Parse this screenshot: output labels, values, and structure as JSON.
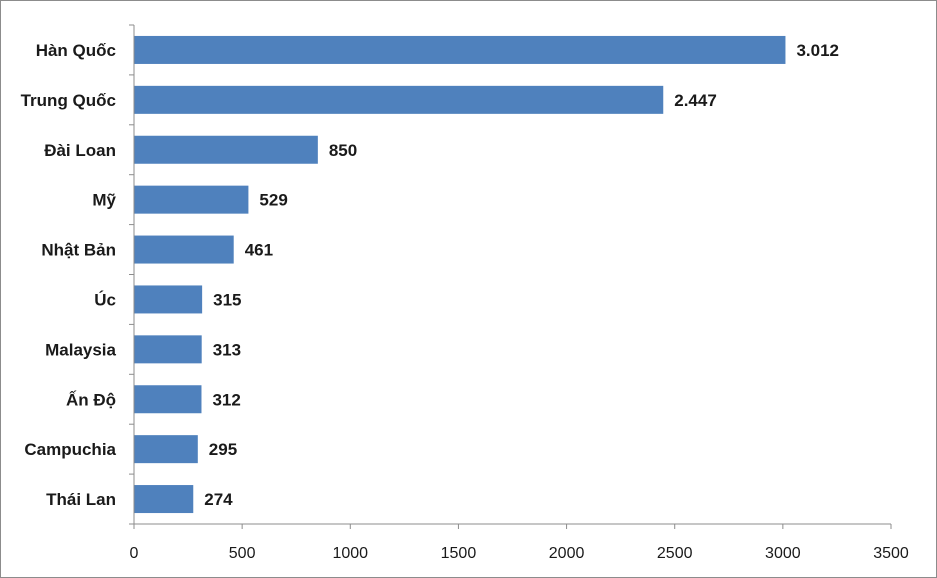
{
  "chart_data": {
    "type": "bar",
    "orientation": "horizontal",
    "categories": [
      "Hàn Quốc",
      "Trung Quốc",
      "Đài Loan",
      "Mỹ",
      "Nhật Bản",
      "Úc",
      "Malaysia",
      "Ấn Độ",
      "Campuchia",
      "Thái Lan"
    ],
    "values": [
      3012,
      2447,
      850,
      529,
      461,
      315,
      313,
      312,
      295,
      274
    ],
    "value_labels": [
      "3.012",
      "2.447",
      "850",
      "529",
      "461",
      "315",
      "313",
      "312",
      "295",
      "274"
    ],
    "xlim": [
      0,
      3500
    ],
    "x_ticks": [
      0,
      500,
      1000,
      1500,
      2000,
      2500,
      3000,
      3500
    ],
    "x_tick_labels": [
      "0",
      "500",
      "1000",
      "1500",
      "2000",
      "2500",
      "3000",
      "3500"
    ],
    "bar_color": "#4F81BD",
    "grid": false,
    "legend": "none"
  }
}
